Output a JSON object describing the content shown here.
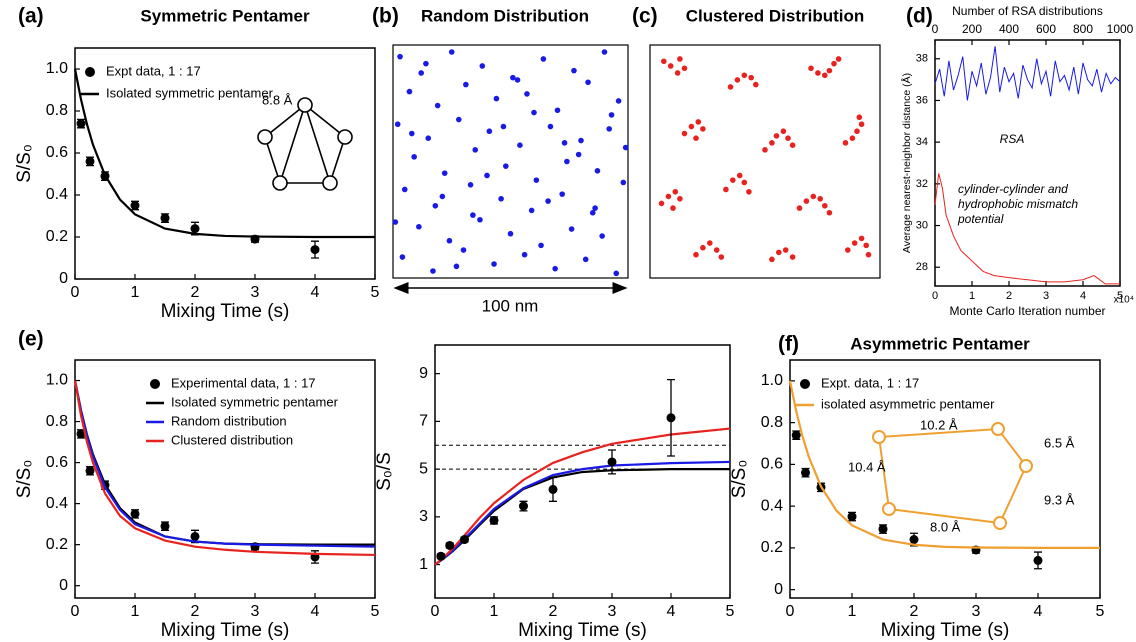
{
  "chart_data": [
    {
      "type": "line",
      "panel_label": "(a)",
      "title": "Symmetric Pentamer",
      "xlabel": "Mixing Time (s)",
      "ylabel": "S/S₀",
      "xlim": [
        0,
        5
      ],
      "ylim": [
        0,
        1.1
      ],
      "xticks": [
        0,
        1,
        2,
        3,
        4,
        5
      ],
      "yticks": [
        0,
        0.2,
        0.4,
        0.6,
        0.8,
        {
          "value": 1,
          "label": "1.0"
        }
      ],
      "legend": "upper left",
      "annotations": [
        "8.8 Å"
      ],
      "series": [
        {
          "name": "Expt data, 1 : 17",
          "mode": "markers",
          "color": "#000000",
          "x": [
            0.1,
            0.25,
            0.5,
            1,
            1.5,
            2,
            3,
            4
          ],
          "values": [
            0.74,
            0.56,
            0.49,
            0.35,
            0.29,
            0.24,
            0.19,
            0.14
          ],
          "errors": [
            0.02,
            0.02,
            0.02,
            0.02,
            0.02,
            0.03,
            0.015,
            0.04
          ]
        },
        {
          "name": "Isolated symmetric pentamer",
          "mode": "lines",
          "color": "#000000",
          "x": [
            0,
            0.1,
            0.2,
            0.3,
            0.5,
            0.75,
            1,
            1.5,
            2,
            2.5,
            3,
            4,
            5
          ],
          "values": [
            1.0,
            0.855,
            0.736,
            0.639,
            0.494,
            0.378,
            0.308,
            0.24,
            0.215,
            0.205,
            0.202,
            0.2,
            0.2
          ]
        }
      ]
    },
    {
      "type": "scatter",
      "panel_label": "(b)",
      "title": "Random Distribution",
      "annotations": [
        "100 nm"
      ],
      "xlim": [
        0,
        100
      ],
      "ylim": [
        0,
        100
      ],
      "color": "#1a1ae6",
      "x": [
        3,
        12,
        25,
        38,
        51,
        64,
        77,
        90,
        7,
        19,
        31,
        44,
        57,
        70,
        83,
        96,
        2,
        15,
        28,
        41,
        54,
        67,
        80,
        93,
        9,
        22,
        35,
        48,
        61,
        74,
        87,
        5,
        18,
        33,
        46,
        59,
        72,
        85,
        98,
        11,
        24,
        37,
        50,
        63,
        76,
        89,
        4,
        17,
        30,
        43,
        56,
        69,
        82,
        95,
        8,
        21,
        34,
        47,
        60,
        73,
        86,
        14,
        27,
        40,
        53,
        66,
        79,
        92,
        1,
        99
      ],
      "values": [
        95,
        88,
        97,
        91,
        86,
        94,
        89,
        97,
        80,
        74,
        83,
        77,
        79,
        72,
        84,
        76,
        66,
        60,
        68,
        63,
        57,
        65,
        59,
        70,
        52,
        45,
        55,
        48,
        42,
        50,
        46,
        38,
        31,
        40,
        34,
        29,
        36,
        28,
        41,
        22,
        16,
        25,
        19,
        14,
        21,
        18,
        9,
        3,
        12,
        6,
        10,
        4,
        8,
        2,
        62,
        35,
        27,
        65,
        71,
        58,
        30,
        92,
        5,
        44,
        85,
        33,
        53,
        64,
        24,
        56
      ]
    },
    {
      "type": "scatter",
      "panel_label": "(c)",
      "title": "Clustered Distribution",
      "xlim": [
        0,
        100
      ],
      "ylim": [
        0,
        100
      ],
      "color": "#e8231f",
      "x": [
        6,
        9,
        12,
        15,
        13,
        35,
        38,
        41,
        44,
        46,
        70,
        73,
        76,
        78,
        80,
        82,
        15,
        18,
        21,
        23,
        20,
        50,
        53,
        55,
        58,
        60,
        62,
        85,
        88,
        90,
        92,
        91,
        5,
        8,
        11,
        13,
        10,
        33,
        36,
        39,
        41,
        43,
        65,
        68,
        71,
        74,
        76,
        78,
        20,
        23,
        26,
        29,
        31,
        53,
        56,
        59,
        62,
        86,
        89,
        92,
        94,
        95
      ],
      "values": [
        93,
        91,
        88,
        90,
        94,
        82,
        85,
        87,
        86,
        83,
        90,
        88,
        87,
        89,
        92,
        94,
        62,
        65,
        67,
        64,
        60,
        55,
        58,
        61,
        63,
        60,
        57,
        58,
        60,
        63,
        66,
        69,
        32,
        35,
        37,
        34,
        30,
        38,
        42,
        44,
        41,
        37,
        30,
        33,
        35,
        34,
        31,
        28,
        10,
        13,
        15,
        12,
        9,
        8,
        11,
        12,
        9,
        12,
        15,
        17,
        14,
        10
      ]
    },
    {
      "type": "line",
      "panel_label": "(d)",
      "xlabel": "Monte Carlo Iteration number",
      "x2label": "Number of RSA distributions",
      "ylabel": "Average nearest-neighbor distance (Å)",
      "xlim": [
        0,
        5
      ],
      "xticks": [
        0,
        1,
        2,
        3,
        4,
        5
      ],
      "x2lim": [
        0,
        1000
      ],
      "x2ticks": [
        0,
        200,
        400,
        600,
        800,
        1000
      ],
      "ylim": [
        27.1,
        38.9
      ],
      "yticks": [
        28,
        30,
        32,
        34,
        36,
        38
      ],
      "annotations": [
        "RSA",
        "cylinder-cylinder and",
        "hydrophobic mismatch",
        "potential",
        "x10⁴"
      ],
      "series": [
        {
          "mode": "lines",
          "axis": "x2",
          "color": "#1a1ae6",
          "x": [
            0,
            25,
            50,
            75,
            100,
            125,
            150,
            175,
            200,
            225,
            250,
            275,
            300,
            325,
            350,
            375,
            400,
            425,
            450,
            475,
            500,
            525,
            550,
            575,
            600,
            625,
            650,
            675,
            700,
            725,
            750,
            775,
            800,
            825,
            850,
            875,
            900,
            925,
            950,
            975,
            1000
          ],
          "values": [
            36.8,
            37.5,
            36.2,
            37.9,
            36.5,
            37.2,
            38.1,
            36.0,
            37.4,
            36.7,
            37.8,
            36.3,
            37.1,
            38.6,
            36.4,
            37.6,
            36.9,
            37.3,
            36.1,
            37.7,
            37.0,
            36.6,
            38.0,
            36.8,
            37.4,
            36.2,
            37.9,
            36.9,
            37.2,
            36.5,
            37.6,
            36.3,
            37.8,
            37.0,
            36.7,
            37.5,
            36.4,
            37.3,
            36.8,
            37.1,
            36.9
          ]
        },
        {
          "mode": "lines",
          "color": "#e8231f",
          "x": [
            0,
            0.1,
            0.2,
            0.3,
            0.5,
            0.7,
            1,
            1.3,
            1.6,
            2,
            2.5,
            3,
            3.5,
            4,
            4.3,
            4.6,
            5
          ],
          "values": [
            31,
            32.5,
            31.8,
            30.5,
            29.5,
            28.8,
            28.3,
            27.8,
            27.6,
            27.5,
            27.4,
            27.3,
            27.3,
            27.4,
            27.6,
            27.2,
            27.2
          ]
        }
      ]
    },
    {
      "type": "line",
      "panel_label": "(e)",
      "xlabel": "Mixing Time (s)",
      "ylabel": "S/S₀",
      "xlim": [
        0,
        5
      ],
      "ylim": [
        -0.06,
        1.1
      ],
      "xticks": [
        0,
        1,
        2,
        3,
        4,
        5
      ],
      "yticks": [
        0,
        0.2,
        0.4,
        0.6,
        0.8,
        {
          "value": 1,
          "label": "1.0"
        }
      ],
      "legend": "upper center",
      "series": [
        {
          "name": "Experimental data, 1 : 17",
          "mode": "markers",
          "color": "#000000",
          "x": [
            0.1,
            0.25,
            0.5,
            1,
            1.5,
            2,
            3,
            4
          ],
          "values": [
            0.74,
            0.56,
            0.49,
            0.35,
            0.29,
            0.24,
            0.19,
            0.14
          ],
          "errors": [
            0.02,
            0.02,
            0.02,
            0.02,
            0.02,
            0.03,
            0.015,
            0.03
          ]
        },
        {
          "name": "Isolated symmetric pentamer",
          "mode": "lines",
          "color": "#000000",
          "x": [
            0,
            0.1,
            0.2,
            0.3,
            0.5,
            0.75,
            1,
            1.5,
            2,
            2.5,
            3,
            4,
            5
          ],
          "values": [
            1.0,
            0.855,
            0.736,
            0.639,
            0.494,
            0.378,
            0.308,
            0.24,
            0.215,
            0.205,
            0.202,
            0.2,
            0.2
          ]
        },
        {
          "name": "Random distribution",
          "mode": "lines",
          "color": "#1a1ae6",
          "x": [
            0,
            0.1,
            0.2,
            0.3,
            0.5,
            0.75,
            1,
            1.5,
            2,
            2.5,
            3,
            4,
            5
          ],
          "values": [
            1.0,
            0.85,
            0.73,
            0.63,
            0.48,
            0.37,
            0.3,
            0.24,
            0.215,
            0.205,
            0.2,
            0.195,
            0.19
          ]
        },
        {
          "name": "Clustered distribution",
          "mode": "lines",
          "color": "#e8231f",
          "x": [
            0,
            0.1,
            0.2,
            0.3,
            0.5,
            0.75,
            1,
            1.5,
            2,
            2.5,
            3,
            4,
            5
          ],
          "values": [
            1.0,
            0.83,
            0.7,
            0.6,
            0.45,
            0.34,
            0.28,
            0.22,
            0.19,
            0.175,
            0.165,
            0.155,
            0.15
          ]
        }
      ]
    },
    {
      "type": "line",
      "xlabel": "Mixing Time (s)",
      "ylabel": "S₀/S",
      "xlim": [
        0,
        5
      ],
      "ylim": [
        -0.4,
        10.2
      ],
      "xticks": [
        0,
        1,
        2,
        3,
        4,
        5
      ],
      "yticks": [
        1,
        3,
        5,
        7,
        9
      ],
      "hlines": [
        5,
        6
      ],
      "series": [
        {
          "mode": "lines",
          "color": "#000000",
          "x": [
            0,
            0.1,
            0.2,
            0.3,
            0.5,
            0.75,
            1,
            1.5,
            2,
            2.5,
            3,
            4,
            5
          ],
          "values": [
            1,
            1.17,
            1.36,
            1.56,
            2.02,
            2.65,
            3.25,
            4.17,
            4.65,
            4.88,
            4.95,
            5.0,
            5.0
          ]
        },
        {
          "mode": "lines",
          "color": "#1a1ae6",
          "x": [
            0,
            0.1,
            0.2,
            0.3,
            0.5,
            0.75,
            1,
            1.5,
            2,
            2.5,
            3,
            4,
            5
          ],
          "values": [
            1,
            1.18,
            1.37,
            1.59,
            2.08,
            2.7,
            3.33,
            4.2,
            4.75,
            5.0,
            5.15,
            5.25,
            5.3
          ]
        },
        {
          "mode": "lines",
          "color": "#e8231f",
          "x": [
            0,
            0.1,
            0.2,
            0.3,
            0.5,
            0.75,
            1,
            1.5,
            2,
            2.5,
            3,
            4,
            5
          ],
          "values": [
            1,
            1.2,
            1.43,
            1.67,
            2.22,
            2.94,
            3.57,
            4.55,
            5.26,
            5.71,
            6.06,
            6.45,
            6.7
          ]
        },
        {
          "mode": "markers",
          "color": "#000000",
          "x": [
            0.1,
            0.25,
            0.5,
            1,
            1.5,
            2,
            3,
            4
          ],
          "values": [
            1.35,
            1.8,
            2.05,
            2.85,
            3.45,
            4.15,
            5.3,
            7.15
          ],
          "errors": [
            0.1,
            0.1,
            0.1,
            0.15,
            0.2,
            0.5,
            0.5,
            1.6
          ]
        }
      ]
    },
    {
      "type": "line",
      "panel_label": "(f)",
      "title": "Asymmetric Pentamer",
      "xlabel": "Mixing Time (s)",
      "ylabel": "S/S₀",
      "xlim": [
        0,
        5
      ],
      "ylim": [
        -0.04,
        1.1
      ],
      "xticks": [
        0,
        1,
        2,
        3,
        4,
        5
      ],
      "yticks": [
        0,
        0.2,
        0.4,
        0.6,
        0.8,
        {
          "value": 1,
          "label": "1.0"
        }
      ],
      "legend": "upper left",
      "annotations": [
        "10.2 Å",
        "6.5 Å",
        "10.4 Å",
        "9.3 Å",
        "8.0 Å"
      ],
      "series": [
        {
          "name": "Expt. data, 1 : 17",
          "mode": "markers",
          "color": "#000000",
          "x": [
            0.1,
            0.25,
            0.5,
            1,
            1.5,
            2,
            3,
            4
          ],
          "values": [
            0.74,
            0.56,
            0.49,
            0.35,
            0.29,
            0.24,
            0.19,
            0.14
          ],
          "errors": [
            0.02,
            0.02,
            0.02,
            0.02,
            0.02,
            0.03,
            0.015,
            0.04
          ]
        },
        {
          "name": "isolated asymmetric pentamer",
          "mode": "lines",
          "color": "#f0a030",
          "x": [
            0,
            0.1,
            0.2,
            0.3,
            0.5,
            0.75,
            1,
            1.5,
            2,
            2.5,
            3,
            4,
            5
          ],
          "values": [
            1.0,
            0.855,
            0.736,
            0.639,
            0.494,
            0.378,
            0.308,
            0.24,
            0.215,
            0.205,
            0.202,
            0.2,
            0.2
          ]
        }
      ]
    }
  ]
}
